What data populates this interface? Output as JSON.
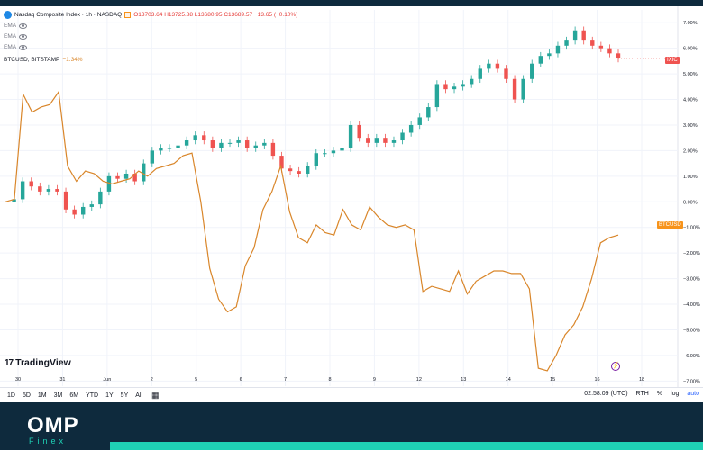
{
  "header": {
    "symbol_title": "Nasdaq Composite Index · 1h · NASDAQ",
    "ohlc_text": "O13703.64 H13725.88 L13680.95 C13689.57 −13.65 (−0.10%)",
    "indicators": [
      "EMA",
      "EMA",
      "EMA"
    ],
    "compare_symbol": "BTCUSD, BITSTAMP",
    "compare_change": "−1.34%"
  },
  "price_tags": {
    "main": "IXIC",
    "compare": "BTCUSD"
  },
  "brand": {
    "logo_mark": "17",
    "name": "TradingView"
  },
  "bottom_bar": {
    "timeframes": [
      "1D",
      "5D",
      "1M",
      "3M",
      "6M",
      "YTD",
      "1Y",
      "5Y",
      "All"
    ],
    "clock": "02:58:09 (UTC)",
    "session": "RTH",
    "percent": "%",
    "log": "log",
    "auto": "auto"
  },
  "footer": {
    "brand": "OMP",
    "sub": "Finex"
  },
  "colors": {
    "up": "#26a69a",
    "down": "#ef5350",
    "btc": "#d9862a",
    "footer_bg": "#0e2a3d",
    "accent": "#1fd1b5"
  },
  "chart_data": {
    "type": "line",
    "title": "Nasdaq Composite Index · 1h · NASDAQ",
    "x_tick_labels": [
      "30",
      "31",
      "Jun",
      "2",
      "5",
      "6",
      "7",
      "8",
      "9",
      "12",
      "13",
      "14",
      "15",
      "16",
      "18"
    ],
    "y_tick_labels": [
      "7.00%",
      "6.00%",
      "5.00%",
      "4.00%",
      "3.00%",
      "2.00%",
      "1.00%",
      "0.00%",
      "−1.00%",
      "−2.00%",
      "−3.00%",
      "−4.00%",
      "−5.00%",
      "−6.00%",
      "−7.00%"
    ],
    "ylim": [
      -7.2,
      7.5
    ],
    "y_unit": "%",
    "series": [
      {
        "name": "Nasdaq Composite Index",
        "kind": "candlestick",
        "values_pct_change": [
          0.0,
          0.1,
          0.8,
          0.6,
          0.4,
          0.5,
          0.4,
          -0.3,
          -0.5,
          -0.2,
          -0.1,
          0.4,
          1.0,
          0.9,
          1.1,
          0.8,
          1.5,
          2.0,
          2.1,
          2.1,
          2.2,
          2.4,
          2.6,
          2.4,
          2.1,
          2.3,
          2.3,
          2.4,
          2.1,
          2.2,
          2.3,
          1.8,
          1.3,
          1.2,
          1.1,
          1.4,
          1.9,
          1.9,
          2.0,
          2.1,
          3.0,
          2.5,
          2.3,
          2.5,
          2.3,
          2.4,
          2.7,
          3.0,
          3.3,
          3.7,
          4.6,
          4.4,
          4.5,
          4.6,
          4.8,
          5.2,
          5.4,
          5.2,
          4.8,
          4.0,
          4.8,
          5.4,
          5.7,
          5.8,
          6.1,
          6.3,
          6.7,
          6.3,
          6.1,
          6.0,
          5.8,
          5.6
        ]
      },
      {
        "name": "BTCUSD, BITSTAMP",
        "kind": "line",
        "values_pct_change": [
          0.0,
          0.1,
          4.2,
          3.5,
          3.7,
          3.8,
          4.3,
          1.4,
          0.8,
          1.2,
          1.1,
          0.8,
          0.7,
          0.8,
          0.9,
          1.2,
          1.0,
          1.3,
          1.4,
          1.5,
          1.8,
          1.9,
          0.0,
          -2.6,
          -3.8,
          -4.3,
          -4.1,
          -2.5,
          -1.8,
          -0.3,
          0.4,
          1.4,
          -0.4,
          -1.4,
          -1.6,
          -0.9,
          -1.2,
          -1.3,
          -0.3,
          -0.9,
          -1.1,
          -0.2,
          -0.6,
          -0.9,
          -1.0,
          -0.9,
          -1.1,
          -3.5,
          -3.3,
          -3.4,
          -3.5,
          -2.7,
          -3.6,
          -3.1,
          -2.9,
          -2.7,
          -2.7,
          -2.8,
          -2.8,
          -3.4,
          -6.5,
          -6.6,
          -6.0,
          -5.2,
          -4.8,
          -4.1,
          -3.0,
          -1.6,
          -1.4,
          -1.3
        ]
      }
    ],
    "grid": true,
    "log_scale": false
  }
}
